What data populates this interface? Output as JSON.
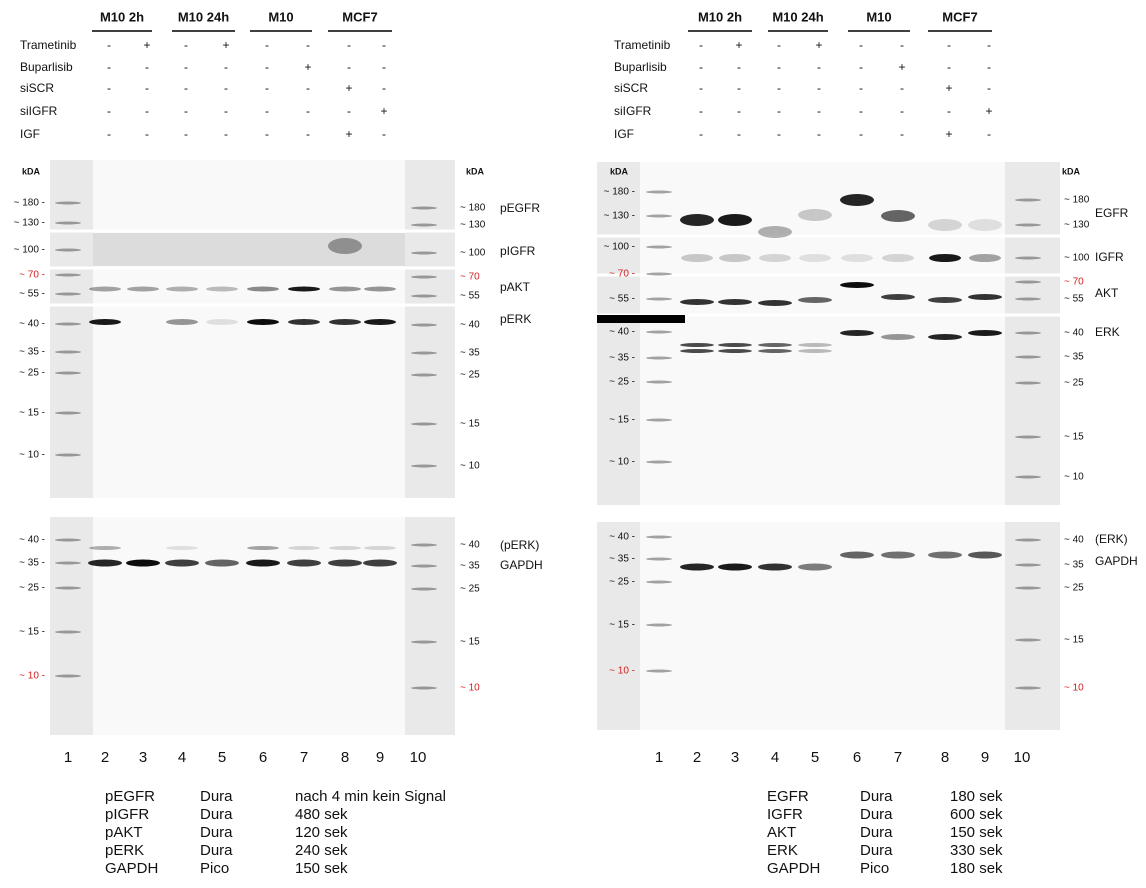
{
  "panels": [
    {
      "groups": [
        "M10 2h",
        "M10 24h",
        "M10",
        "MCF7"
      ],
      "treatments": [
        {
          "name": "Trametinib",
          "lanes": [
            "-",
            "+",
            "-",
            "+",
            "-",
            "-",
            "-",
            "-"
          ]
        },
        {
          "name": "Buparlisib",
          "lanes": [
            "-",
            "-",
            "-",
            "-",
            "-",
            "+",
            "-",
            "-"
          ]
        },
        {
          "name": "siSCR",
          "lanes": [
            "-",
            "-",
            "-",
            "-",
            "-",
            "-",
            "+",
            "-"
          ]
        },
        {
          "name": "siIGFR",
          "lanes": [
            "-",
            "-",
            "-",
            "-",
            "-",
            "-",
            "-",
            "+"
          ]
        },
        {
          "name": "IGF",
          "lanes": [
            "-",
            "-",
            "-",
            "-",
            "-",
            "-",
            "+",
            "-"
          ]
        }
      ],
      "kda_left": "kDA",
      "kda_right": "kDA",
      "top_blot": {
        "left_markers": [
          "~ 180 -",
          "~ 130 -",
          "~ 100 -",
          "~ 70 -",
          "~ 55 -",
          "~ 40 -",
          "~ 35 -",
          "~ 25 -",
          "~ 15 -",
          "~ 10 -"
        ],
        "right_markers": [
          "~ 180",
          "~ 130",
          "~ 100",
          "~ 70",
          "~ 55",
          "~ 40",
          "~ 35",
          "~ 25",
          "~ 15",
          "~ 10"
        ],
        "bands": [
          "pEGFR",
          "pIGFR",
          "pAKT",
          "pERK"
        ]
      },
      "bottom_blot": {
        "left_markers": [
          "~ 40 -",
          "~ 35 -",
          "~ 25 -",
          "~ 15 -",
          "~ 10 -"
        ],
        "right_markers": [
          "~ 40",
          "~ 35",
          "~ 25",
          "~ 15",
          "~ 10"
        ],
        "bands": [
          "(pERK)",
          "GAPDH"
        ]
      },
      "lanes": [
        1,
        2,
        3,
        4,
        5,
        6,
        7,
        8,
        9,
        10
      ],
      "exposure": [
        [
          "pEGFR",
          "Dura",
          "nach 4 min kein Signal"
        ],
        [
          "pIGFR",
          "Dura",
          "480 sek"
        ],
        [
          "pAKT",
          "Dura",
          "120 sek"
        ],
        [
          "pERK",
          "Dura",
          "240 sek"
        ],
        [
          "GAPDH",
          "Pico",
          "150 sek"
        ]
      ]
    },
    {
      "groups": [
        "M10 2h",
        "M10 24h",
        "M10",
        "MCF7"
      ],
      "treatments": [
        {
          "name": "Trametinib",
          "lanes": [
            "-",
            "+",
            "-",
            "+",
            "-",
            "-",
            "-",
            "-"
          ]
        },
        {
          "name": "Buparlisib",
          "lanes": [
            "-",
            "-",
            "-",
            "-",
            "-",
            "+",
            "-",
            "-"
          ]
        },
        {
          "name": "siSCR",
          "lanes": [
            "-",
            "-",
            "-",
            "-",
            "-",
            "-",
            "+",
            "-"
          ]
        },
        {
          "name": "siIGFR",
          "lanes": [
            "-",
            "-",
            "-",
            "-",
            "-",
            "-",
            "-",
            "+"
          ]
        },
        {
          "name": "IGF",
          "lanes": [
            "-",
            "-",
            "-",
            "-",
            "-",
            "-",
            "+",
            "-"
          ]
        }
      ],
      "kda_left": "kDA",
      "kda_right": "kDA",
      "top_blot": {
        "left_markers": [
          "~ 180 -",
          "~ 130 -",
          "~ 100 -",
          "~ 70 -",
          "~ 55 -",
          "~ 40 -",
          "~ 35 -",
          "~ 25 -",
          "~ 15 -",
          "~ 10 -"
        ],
        "right_markers": [
          "~ 180",
          "~ 130",
          "~ 100",
          "~ 70",
          "~ 55",
          "~ 40",
          "~ 35",
          "~ 25",
          "~ 15",
          "~ 10"
        ],
        "bands": [
          "EGFR",
          "IGFR",
          "AKT",
          "ERK"
        ]
      },
      "bottom_blot": {
        "left_markers": [
          "~ 40 -",
          "~ 35 -",
          "~ 25 -",
          "~ 15 -",
          "~ 10 -"
        ],
        "right_markers": [
          "~ 40",
          "~ 35",
          "~ 25",
          "~ 15",
          "~ 10"
        ],
        "bands": [
          "(ERK)",
          "GAPDH"
        ]
      },
      "lanes": [
        1,
        2,
        3,
        4,
        5,
        6,
        7,
        8,
        9,
        10
      ],
      "exposure": [
        [
          "EGFR",
          "Dura",
          "180 sek"
        ],
        [
          "IGFR",
          "Dura",
          "600 sek"
        ],
        [
          "AKT",
          "Dura",
          "150 sek"
        ],
        [
          "ERK",
          "Dura",
          "330 sek"
        ],
        [
          "GAPDH",
          "Pico",
          "180 sek"
        ]
      ]
    }
  ]
}
